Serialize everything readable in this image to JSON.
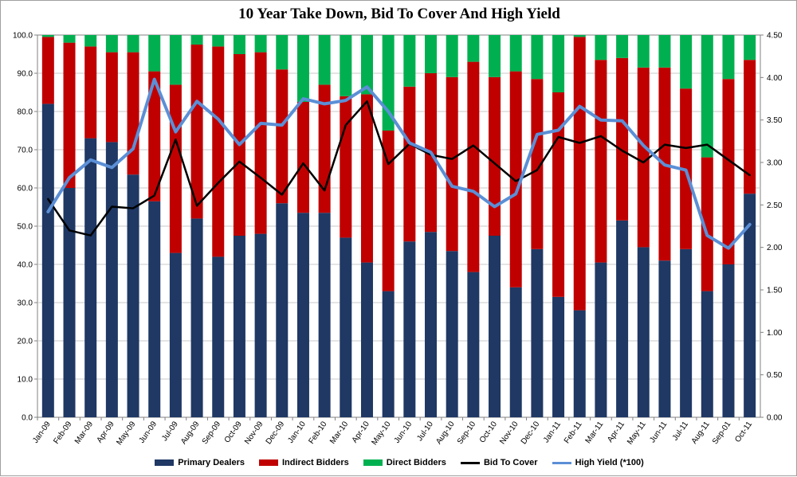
{
  "chart_data": {
    "type": "bar",
    "title": "10 Year Take Down, Bid To Cover And High Yield",
    "categories": [
      "Jan-09",
      "Feb-09",
      "Mar-09",
      "Apr-09",
      "May-09",
      "Jun-09",
      "Jul-09",
      "Aug-09",
      "Sep-09",
      "Oct-09",
      "Nov-09",
      "Dec-09",
      "Jan-10",
      "Feb-10",
      "Mar-10",
      "Apr-10",
      "May-10",
      "Jun-10",
      "Jul-10",
      "Aug-10",
      "Sep-10",
      "Oct-10",
      "Nov-10",
      "Dec-10",
      "Jan-11",
      "Feb-11",
      "Mar-11",
      "Apr-11",
      "May-11",
      "Jun-11",
      "Jul-11",
      "Aug-11",
      "Sep-01",
      "Oct-11"
    ],
    "ylim": [
      0,
      100
    ],
    "y2lim": [
      0,
      4.5
    ],
    "yticks": [
      "0.0",
      "10.0",
      "20.0",
      "30.0",
      "40.0",
      "50.0",
      "60.0",
      "70.0",
      "80.0",
      "90.0",
      "100.0"
    ],
    "y2ticks": [
      "0.00",
      "0.50",
      "1.00",
      "1.50",
      "2.00",
      "2.50",
      "3.00",
      "3.50",
      "4.00",
      "4.50"
    ],
    "grid": true,
    "legend_position": "bottom",
    "series": [
      {
        "name": "Primary Dealers",
        "kind": "stacked-bar",
        "axis": "left",
        "color": "#1f3864",
        "values": [
          82,
          60,
          73,
          72,
          63.5,
          56.5,
          43,
          52,
          42,
          47.5,
          48,
          56,
          53.5,
          53.5,
          47,
          40.5,
          33,
          46,
          48.5,
          43.5,
          38,
          47.5,
          34,
          44,
          31.5,
          28,
          40.5,
          51.5,
          44.5,
          41,
          44,
          33,
          40,
          58.5
        ]
      },
      {
        "name": "Indirect Bidders",
        "kind": "stacked-bar",
        "axis": "left",
        "color": "#c00000",
        "values": [
          17.5,
          38,
          24,
          23.5,
          32,
          34,
          44,
          45.5,
          55,
          47.5,
          47.5,
          35,
          29,
          33.5,
          37,
          44,
          42,
          40.5,
          41.5,
          45.5,
          55,
          41.5,
          56.5,
          44.5,
          53.5,
          71.5,
          53,
          42.5,
          47,
          50.5,
          42,
          35,
          48.5,
          35
        ]
      },
      {
        "name": "Direct Bidders",
        "kind": "stacked-bar",
        "axis": "left",
        "color": "#00b050",
        "values": [
          0.5,
          2,
          3,
          4.5,
          4.5,
          9.5,
          13,
          2.5,
          3,
          5,
          4.5,
          9,
          17.5,
          13,
          16,
          15.5,
          25,
          13.5,
          10,
          11,
          7,
          11,
          9.5,
          11.5,
          15,
          0.5,
          6.5,
          6,
          8.5,
          8.5,
          14,
          32,
          11.5,
          6.5
        ]
      },
      {
        "name": "Bid To Cover",
        "kind": "line",
        "axis": "right",
        "color": "#000000",
        "values": [
          2.57,
          2.2,
          2.14,
          2.48,
          2.46,
          2.61,
          3.27,
          2.49,
          2.76,
          3.01,
          2.82,
          2.62,
          2.99,
          2.67,
          3.44,
          3.72,
          2.98,
          3.22,
          3.09,
          3.04,
          3.2,
          2.99,
          2.78,
          2.91,
          3.3,
          3.23,
          3.31,
          3.14,
          3.0,
          3.21,
          3.17,
          3.21,
          3.03,
          2.85
        ]
      },
      {
        "name": "High Yield (*100)",
        "kind": "line",
        "axis": "right",
        "color": "#5b8fd6",
        "values": [
          2.42,
          2.82,
          3.03,
          2.94,
          3.16,
          3.98,
          3.36,
          3.72,
          3.51,
          3.21,
          3.46,
          3.44,
          3.75,
          3.69,
          3.73,
          3.89,
          3.6,
          3.23,
          3.12,
          2.72,
          2.66,
          2.48,
          2.63,
          3.33,
          3.38,
          3.66,
          3.5,
          3.49,
          3.2,
          2.97,
          2.91,
          2.14,
          1.99,
          2.27
        ]
      }
    ]
  }
}
